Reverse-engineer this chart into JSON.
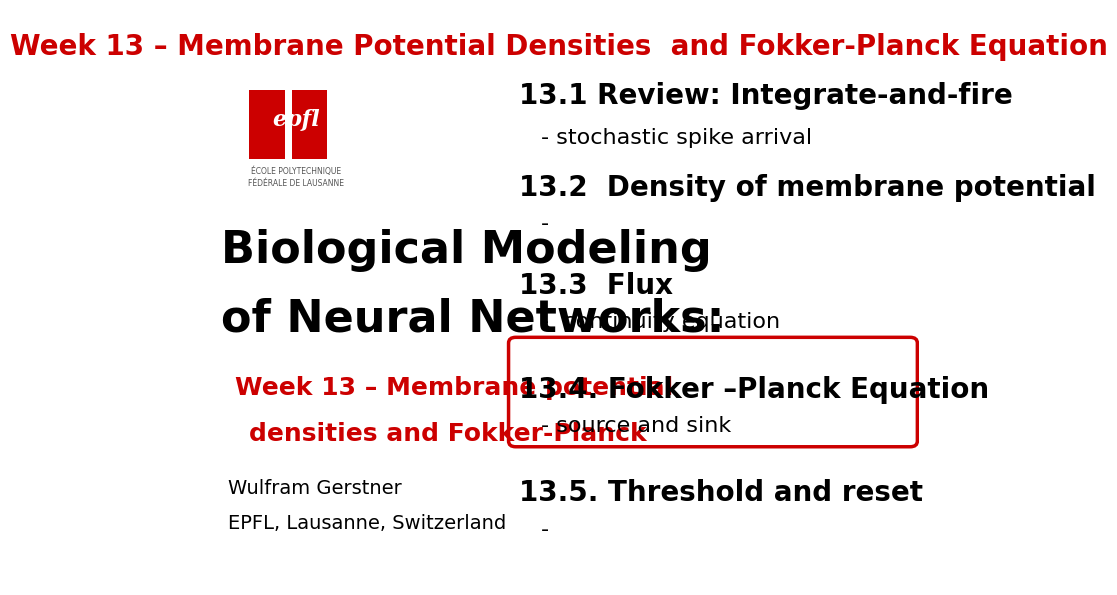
{
  "bg_color": "#ffffff",
  "title": "Week 13 – Membrane Potential Densities  and Fokker-Planck Equation",
  "title_color": "#cc0000",
  "title_fontsize": 20,
  "left_col": {
    "big_title_line1": "Biological Modeling",
    "big_title_line2": "of Neural Networks:",
    "big_title_color": "#000000",
    "big_title_fontsize": 32,
    "subtitle_line1": "Week 13 – Membrane potential",
    "subtitle_line2": "densities and Fokker-Planck",
    "subtitle_color": "#cc0000",
    "subtitle_fontsize": 18,
    "author": "Wulfram Gerstner",
    "affiliation": "EPFL, Lausanne, Switzerland",
    "author_color": "#000000",
    "author_fontsize": 14
  },
  "right_col": {
    "items": [
      {
        "level": 1,
        "text": "13.1 Review: Integrate-and-fire",
        "fontsize": 20,
        "bold": true
      },
      {
        "level": 2,
        "text": "- stochastic spike arrival",
        "fontsize": 16,
        "bold": false
      },
      {
        "level": 1,
        "text": "13.2  Density of membrane potential",
        "fontsize": 20,
        "bold": true
      },
      {
        "level": 2,
        "text": "-",
        "fontsize": 16,
        "bold": false
      },
      {
        "level": 0,
        "text": "",
        "fontsize": 10,
        "bold": false
      },
      {
        "level": 1,
        "text": "13.3  Flux",
        "fontsize": 20,
        "bold": true
      },
      {
        "level": 2,
        "text": "-  continuity equation",
        "fontsize": 16,
        "bold": false
      },
      {
        "level": 0,
        "text": "",
        "fontsize": 10,
        "bold": false
      },
      {
        "level": 1,
        "text": "13.4. Fokker –Planck Equation",
        "fontsize": 20,
        "bold": true,
        "boxed": true
      },
      {
        "level": 2,
        "text": "- source and sink",
        "fontsize": 16,
        "bold": false,
        "boxed": true
      },
      {
        "level": 0,
        "text": "",
        "fontsize": 10,
        "bold": false
      },
      {
        "level": 1,
        "text": "13.5. Threshold and reset",
        "fontsize": 20,
        "bold": true
      },
      {
        "level": 2,
        "text": "-",
        "fontsize": 16,
        "bold": false
      }
    ],
    "text_color": "#000000",
    "box_color": "#cc0000"
  }
}
